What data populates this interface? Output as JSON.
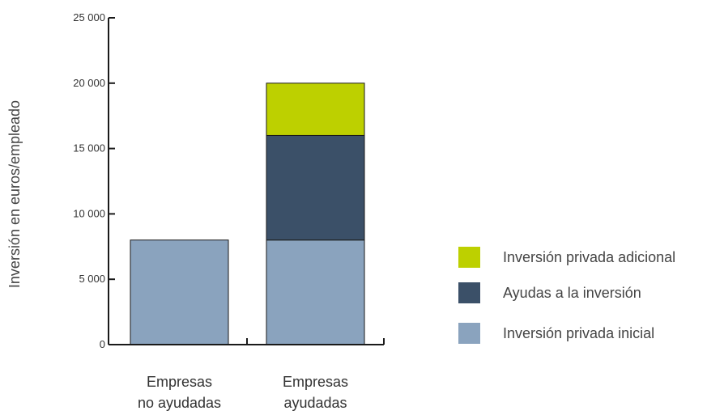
{
  "chart_data": {
    "type": "bar",
    "stacked": true,
    "ylabel": "Inversión en euros/empleado",
    "xlabel": "",
    "ylim": [
      0,
      25000
    ],
    "yticks": [
      0,
      5000,
      10000,
      15000,
      20000,
      25000
    ],
    "ytick_labels": [
      "0",
      "5 000",
      "10 000",
      "15 000",
      "20 000",
      "25 000"
    ],
    "categories": [
      [
        "Empresas",
        "no ayudadas"
      ],
      [
        "Empresas",
        "ayudadas"
      ]
    ],
    "series": [
      {
        "name": "Inversión privada inicial",
        "values": [
          8000,
          8000
        ],
        "color": "#8aa3be"
      },
      {
        "name": "Ayudas a la inversión",
        "values": [
          0,
          8000
        ],
        "color": "#3b5068"
      },
      {
        "name": "Inversión privada adicional",
        "values": [
          0,
          4000
        ],
        "color": "#bdd000"
      }
    ],
    "legend": {
      "placement": "right",
      "order": [
        "Inversión privada adicional",
        "Ayudas a la inversión",
        "Inversión privada inicial"
      ]
    },
    "grid": false
  }
}
